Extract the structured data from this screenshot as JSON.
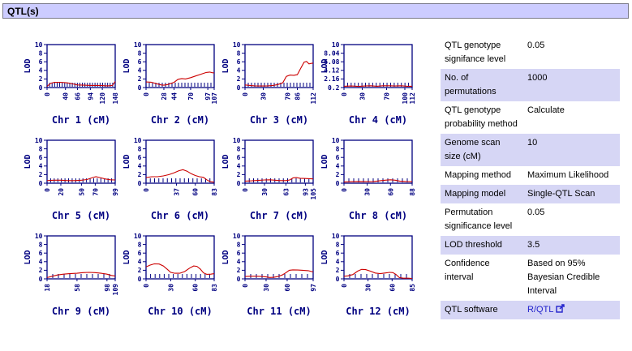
{
  "header": {
    "title": "QTL(s)"
  },
  "colors": {
    "header_bg": "#ccccff",
    "row_alt_bg": "#d6d6f5",
    "axis": "#000080",
    "curve": "#cc0000",
    "link": "#2222cc"
  },
  "chart_data": {
    "type": "line",
    "ylabel": "LOD",
    "series_color": "#cc0000",
    "charts": [
      {
        "title": "Chr 1 (cM)",
        "xmin": 0,
        "xmax": 148,
        "xticks": [
          "0",
          "40",
          "66",
          "94",
          "120",
          "148"
        ],
        "yticks": [
          "0",
          "2",
          "4",
          "6",
          "8",
          "10"
        ],
        "ymin": 0,
        "ymax": 10,
        "rug_ticks": 28,
        "points": [
          [
            0,
            0.3
          ],
          [
            8,
            1.0
          ],
          [
            16,
            1.2
          ],
          [
            30,
            1.2
          ],
          [
            44,
            1.1
          ],
          [
            56,
            0.85
          ],
          [
            66,
            0.6
          ],
          [
            80,
            0.55
          ],
          [
            94,
            0.5
          ],
          [
            108,
            0.5
          ],
          [
            120,
            0.45
          ],
          [
            132,
            0.4
          ],
          [
            142,
            0.5
          ],
          [
            148,
            1.4
          ]
        ]
      },
      {
        "title": "Chr 2 (cM)",
        "xmin": 0,
        "xmax": 107,
        "xticks": [
          "0",
          "28",
          "44",
          "70",
          "97",
          "107"
        ],
        "yticks": [
          "0",
          "2",
          "4",
          "6",
          "8",
          "10"
        ],
        "ymin": 0,
        "ymax": 10,
        "rug_ticks": 22,
        "points": [
          [
            0,
            1.3
          ],
          [
            8,
            1.25
          ],
          [
            16,
            0.9
          ],
          [
            24,
            0.6
          ],
          [
            28,
            0.55
          ],
          [
            34,
            0.7
          ],
          [
            40,
            1.0
          ],
          [
            44,
            1.2
          ],
          [
            50,
            1.9
          ],
          [
            56,
            2.1
          ],
          [
            62,
            2.0
          ],
          [
            70,
            2.3
          ],
          [
            78,
            2.7
          ],
          [
            86,
            3.1
          ],
          [
            94,
            3.5
          ],
          [
            100,
            3.6
          ],
          [
            104,
            3.45
          ],
          [
            107,
            3.4
          ]
        ]
      },
      {
        "title": "Chr 3 (cM)",
        "xmin": 0,
        "xmax": 112,
        "xticks": [
          "0",
          "30",
          "70",
          "86",
          "112"
        ],
        "yticks": [
          "0",
          "2",
          "4",
          "6",
          "8",
          "10"
        ],
        "ymin": 0,
        "ymax": 10,
        "rug_ticks": 22,
        "points": [
          [
            0,
            0.6
          ],
          [
            8,
            0.5
          ],
          [
            16,
            0.4
          ],
          [
            24,
            0.35
          ],
          [
            30,
            0.35
          ],
          [
            38,
            0.4
          ],
          [
            46,
            0.5
          ],
          [
            54,
            0.7
          ],
          [
            62,
            1.1
          ],
          [
            68,
            2.6
          ],
          [
            74,
            2.9
          ],
          [
            80,
            2.85
          ],
          [
            86,
            3.0
          ],
          [
            92,
            4.6
          ],
          [
            97,
            5.9
          ],
          [
            101,
            6.1
          ],
          [
            105,
            5.5
          ],
          [
            108,
            5.6
          ],
          [
            112,
            5.7
          ]
        ]
      },
      {
        "title": "Chr 4 (cM)",
        "xmin": 0,
        "xmax": 112,
        "xticks": [
          "0",
          "30",
          "70",
          "100",
          "112"
        ],
        "yticks": [
          "0.2",
          "2.16",
          "4.12",
          "6.08",
          "8.04",
          "10"
        ],
        "ymin": 0.2,
        "ymax": 10,
        "rug_ticks": 20,
        "points": [
          [
            0,
            0.5
          ],
          [
            12,
            0.55
          ],
          [
            24,
            0.45
          ],
          [
            34,
            0.55
          ],
          [
            44,
            0.6
          ],
          [
            54,
            0.5
          ],
          [
            64,
            0.6
          ],
          [
            74,
            0.6
          ],
          [
            84,
            0.55
          ],
          [
            94,
            0.6
          ],
          [
            104,
            0.5
          ],
          [
            112,
            0.5
          ]
        ]
      },
      {
        "title": "Chr 5 (cM)",
        "xmin": 0,
        "xmax": 99,
        "xticks": [
          "0",
          "20",
          "50",
          "70",
          "99"
        ],
        "yticks": [
          "0",
          "2",
          "4",
          "6",
          "8",
          "10"
        ],
        "ymin": 0,
        "ymax": 10,
        "rug_ticks": 20,
        "points": [
          [
            0,
            0.6
          ],
          [
            10,
            0.7
          ],
          [
            20,
            0.7
          ],
          [
            30,
            0.6
          ],
          [
            40,
            0.6
          ],
          [
            50,
            0.7
          ],
          [
            58,
            0.85
          ],
          [
            66,
            1.3
          ],
          [
            71,
            1.5
          ],
          [
            77,
            1.3
          ],
          [
            84,
            1.0
          ],
          [
            92,
            0.8
          ],
          [
            99,
            0.75
          ]
        ]
      },
      {
        "title": "Chr 6 (cM)",
        "xmin": 0,
        "xmax": 83,
        "xticks": [
          "0",
          "37",
          "60",
          "83"
        ],
        "yticks": [
          "0",
          "2",
          "4",
          "6",
          "8",
          "10"
        ],
        "ymin": 0,
        "ymax": 10,
        "rug_ticks": 17,
        "points": [
          [
            0,
            1.3
          ],
          [
            7,
            1.5
          ],
          [
            14,
            1.5
          ],
          [
            21,
            1.7
          ],
          [
            28,
            2.0
          ],
          [
            34,
            2.4
          ],
          [
            40,
            2.9
          ],
          [
            45,
            3.15
          ],
          [
            50,
            2.8
          ],
          [
            55,
            2.2
          ],
          [
            60,
            1.8
          ],
          [
            65,
            1.5
          ],
          [
            70,
            1.35
          ],
          [
            74,
            0.8
          ],
          [
            78,
            0.35
          ],
          [
            83,
            0.25
          ]
        ]
      },
      {
        "title": "Chr 7 (cM)",
        "xmin": 0,
        "xmax": 105,
        "xticks": [
          "0",
          "30",
          "63",
          "93",
          "105"
        ],
        "yticks": [
          "0",
          "2",
          "4",
          "6",
          "8",
          "10"
        ],
        "ymin": 0,
        "ymax": 10,
        "rug_ticks": 17,
        "points": [
          [
            0,
            0.5
          ],
          [
            10,
            0.55
          ],
          [
            20,
            0.65
          ],
          [
            30,
            0.75
          ],
          [
            38,
            0.8
          ],
          [
            46,
            0.7
          ],
          [
            54,
            0.6
          ],
          [
            63,
            0.6
          ],
          [
            69,
            0.75
          ],
          [
            74,
            1.25
          ],
          [
            79,
            1.3
          ],
          [
            85,
            1.15
          ],
          [
            93,
            1.1
          ],
          [
            99,
            1.05
          ],
          [
            105,
            1.0
          ]
        ]
      },
      {
        "title": "Chr 8 (cM)",
        "xmin": 0,
        "xmax": 88,
        "xticks": [
          "0",
          "30",
          "60",
          "88"
        ],
        "yticks": [
          "0",
          "2",
          "4",
          "6",
          "8",
          "10"
        ],
        "ymin": 0,
        "ymax": 10,
        "rug_ticks": 15,
        "points": [
          [
            0,
            0.3
          ],
          [
            10,
            0.35
          ],
          [
            20,
            0.4
          ],
          [
            30,
            0.35
          ],
          [
            38,
            0.4
          ],
          [
            46,
            0.55
          ],
          [
            53,
            0.7
          ],
          [
            60,
            0.8
          ],
          [
            66,
            0.7
          ],
          [
            72,
            0.5
          ],
          [
            80,
            0.4
          ],
          [
            88,
            0.35
          ]
        ]
      },
      {
        "title": "Chr 9 (cM)",
        "xmin": 18,
        "xmax": 109,
        "xticks": [
          "18",
          "58",
          "98",
          "109"
        ],
        "yticks": [
          "0",
          "2",
          "4",
          "6",
          "8",
          "10"
        ],
        "ymin": 0,
        "ymax": 10,
        "rug_ticks": 13,
        "points": [
          [
            18,
            0.3
          ],
          [
            25,
            0.6
          ],
          [
            32,
            0.9
          ],
          [
            40,
            1.1
          ],
          [
            48,
            1.2
          ],
          [
            58,
            1.3
          ],
          [
            66,
            1.45
          ],
          [
            74,
            1.5
          ],
          [
            82,
            1.45
          ],
          [
            90,
            1.3
          ],
          [
            98,
            1.1
          ],
          [
            104,
            0.8
          ],
          [
            109,
            0.65
          ]
        ]
      },
      {
        "title": "Chr 10 (cM)",
        "xmin": 0,
        "xmax": 83,
        "xticks": [
          "0",
          "30",
          "60",
          "83"
        ],
        "yticks": [
          "0",
          "2",
          "4",
          "6",
          "8",
          "10"
        ],
        "ymin": 0,
        "ymax": 10,
        "rug_ticks": 16,
        "points": [
          [
            0,
            2.8
          ],
          [
            5,
            3.2
          ],
          [
            10,
            3.5
          ],
          [
            16,
            3.45
          ],
          [
            21,
            3.0
          ],
          [
            26,
            2.2
          ],
          [
            30,
            1.5
          ],
          [
            35,
            1.3
          ],
          [
            41,
            1.3
          ],
          [
            47,
            1.7
          ],
          [
            53,
            2.5
          ],
          [
            58,
            3.0
          ],
          [
            62,
            2.9
          ],
          [
            66,
            2.3
          ],
          [
            70,
            1.4
          ],
          [
            74,
            1.05
          ],
          [
            79,
            1.1
          ],
          [
            83,
            1.2
          ]
        ]
      },
      {
        "title": "Chr 11 (cM)",
        "xmin": 0,
        "xmax": 97,
        "xticks": [
          "0",
          "30",
          "60",
          "97"
        ],
        "yticks": [
          "0",
          "2",
          "4",
          "6",
          "8",
          "10"
        ],
        "ymin": 0,
        "ymax": 10,
        "rug_ticks": 13,
        "points": [
          [
            0,
            0.55
          ],
          [
            8,
            0.6
          ],
          [
            16,
            0.6
          ],
          [
            24,
            0.55
          ],
          [
            30,
            0.45
          ],
          [
            35,
            0.32
          ],
          [
            41,
            0.35
          ],
          [
            47,
            0.55
          ],
          [
            53,
            0.9
          ],
          [
            58,
            1.4
          ],
          [
            63,
            2.0
          ],
          [
            68,
            2.1
          ],
          [
            75,
            2.05
          ],
          [
            82,
            2.0
          ],
          [
            90,
            1.9
          ],
          [
            97,
            1.6
          ]
        ]
      },
      {
        "title": "Chr 12 (cM)",
        "xmin": 0,
        "xmax": 85,
        "xticks": [
          "0",
          "30",
          "60",
          "85"
        ],
        "yticks": [
          "0",
          "2",
          "4",
          "6",
          "8",
          "10"
        ],
        "ymin": 0,
        "ymax": 10,
        "rug_ticks": 13,
        "points": [
          [
            0,
            0.6
          ],
          [
            5,
            0.7
          ],
          [
            11,
            1.0
          ],
          [
            17,
            1.8
          ],
          [
            22,
            2.2
          ],
          [
            27,
            2.15
          ],
          [
            33,
            1.8
          ],
          [
            39,
            1.35
          ],
          [
            45,
            1.2
          ],
          [
            51,
            1.35
          ],
          [
            57,
            1.5
          ],
          [
            61,
            1.45
          ],
          [
            65,
            1.0
          ],
          [
            69,
            0.3
          ],
          [
            74,
            0.15
          ],
          [
            80,
            0.15
          ],
          [
            85,
            0.1
          ]
        ]
      }
    ]
  },
  "settings": {
    "rows": [
      {
        "label": "QTL genotype signifance level",
        "value": "0.05"
      },
      {
        "label": "No. of permutations",
        "value": "1000"
      },
      {
        "label": "QTL genotype probability method",
        "value": "Calculate"
      },
      {
        "label": "Genome scan size (cM)",
        "value": "10"
      },
      {
        "label": "Mapping method",
        "value": "Maximum Likelihood"
      },
      {
        "label": "Mapping model",
        "value": "Single-QTL Scan"
      },
      {
        "label": "Permutation significance level",
        "value": "0.05"
      },
      {
        "label": "LOD threshold",
        "value": "3.5"
      },
      {
        "label": "Confidence interval",
        "value": "Based on 95% Bayesian Credible Interval"
      },
      {
        "label": "QTL software",
        "value": "R/QTL"
      }
    ]
  }
}
